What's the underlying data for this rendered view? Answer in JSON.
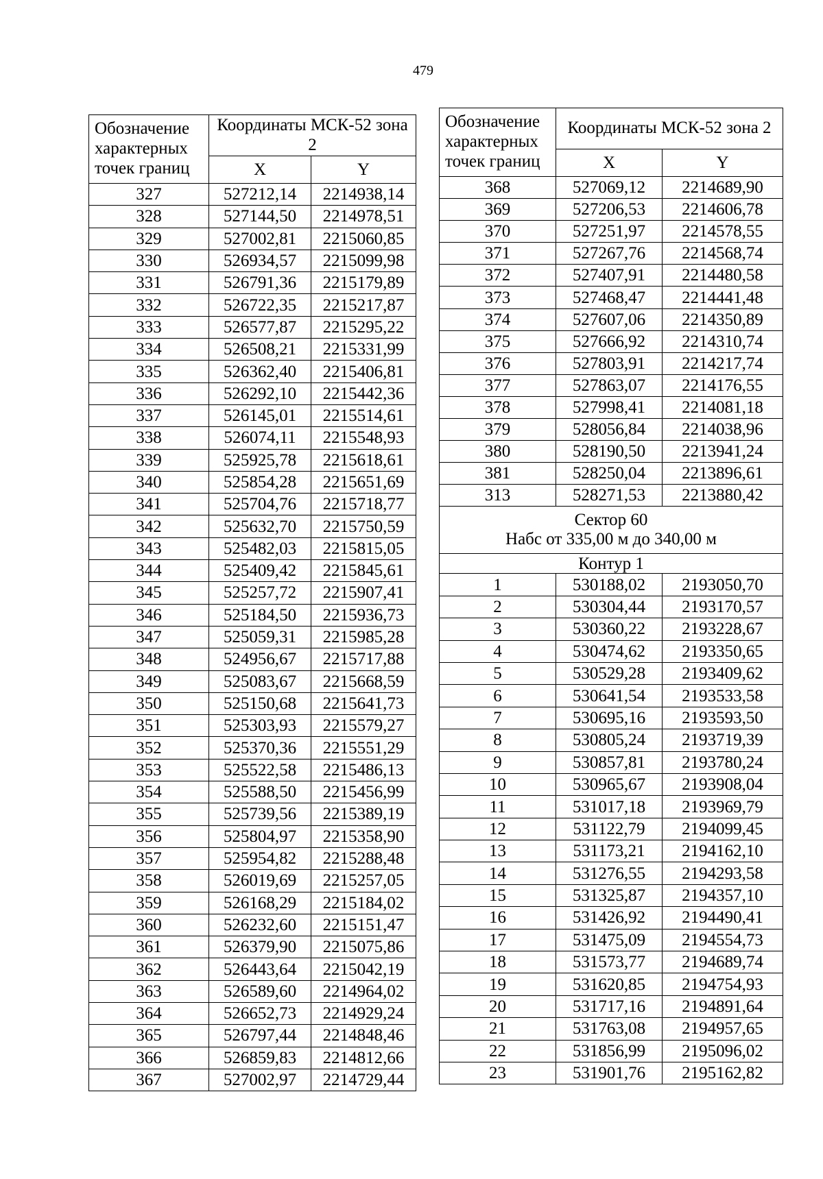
{
  "page_number": "479",
  "left_table": {
    "header": {
      "designation": "Обозначение характерных точек границ",
      "coordinates": "Координаты МСК-52 зона 2",
      "x": "X",
      "y": "Y"
    },
    "rows": [
      [
        "327",
        "527212,14",
        "2214938,14"
      ],
      [
        "328",
        "527144,50",
        "2214978,51"
      ],
      [
        "329",
        "527002,81",
        "2215060,85"
      ],
      [
        "330",
        "526934,57",
        "2215099,98"
      ],
      [
        "331",
        "526791,36",
        "2215179,89"
      ],
      [
        "332",
        "526722,35",
        "2215217,87"
      ],
      [
        "333",
        "526577,87",
        "2215295,22"
      ],
      [
        "334",
        "526508,21",
        "2215331,99"
      ],
      [
        "335",
        "526362,40",
        "2215406,81"
      ],
      [
        "336",
        "526292,10",
        "2215442,36"
      ],
      [
        "337",
        "526145,01",
        "2215514,61"
      ],
      [
        "338",
        "526074,11",
        "2215548,93"
      ],
      [
        "339",
        "525925,78",
        "2215618,61"
      ],
      [
        "340",
        "525854,28",
        "2215651,69"
      ],
      [
        "341",
        "525704,76",
        "2215718,77"
      ],
      [
        "342",
        "525632,70",
        "2215750,59"
      ],
      [
        "343",
        "525482,03",
        "2215815,05"
      ],
      [
        "344",
        "525409,42",
        "2215845,61"
      ],
      [
        "345",
        "525257,72",
        "2215907,41"
      ],
      [
        "346",
        "525184,50",
        "2215936,73"
      ],
      [
        "347",
        "525059,31",
        "2215985,28"
      ],
      [
        "348",
        "524956,67",
        "2215717,88"
      ],
      [
        "349",
        "525083,67",
        "2215668,59"
      ],
      [
        "350",
        "525150,68",
        "2215641,73"
      ],
      [
        "351",
        "525303,93",
        "2215579,27"
      ],
      [
        "352",
        "525370,36",
        "2215551,29"
      ],
      [
        "353",
        "525522,58",
        "2215486,13"
      ],
      [
        "354",
        "525588,50",
        "2215456,99"
      ],
      [
        "355",
        "525739,56",
        "2215389,19"
      ],
      [
        "356",
        "525804,97",
        "2215358,90"
      ],
      [
        "357",
        "525954,82",
        "2215288,48"
      ],
      [
        "358",
        "526019,69",
        "2215257,05"
      ],
      [
        "359",
        "526168,29",
        "2215184,02"
      ],
      [
        "360",
        "526232,60",
        "2215151,47"
      ],
      [
        "361",
        "526379,90",
        "2215075,86"
      ],
      [
        "362",
        "526443,64",
        "2215042,19"
      ],
      [
        "363",
        "526589,60",
        "2214964,02"
      ],
      [
        "364",
        "526652,73",
        "2214929,24"
      ],
      [
        "365",
        "526797,44",
        "2214848,46"
      ],
      [
        "366",
        "526859,83",
        "2214812,66"
      ],
      [
        "367",
        "527002,97",
        "2214729,44"
      ]
    ]
  },
  "right_table": {
    "header": {
      "designation": "Обозначение характерных точек границ",
      "coordinates": "Координаты МСК-52 зона 2",
      "x": "X",
      "y": "Y"
    },
    "rows": [
      [
        "368",
        "527069,12",
        "2214689,90"
      ],
      [
        "369",
        "527206,53",
        "2214606,78"
      ],
      [
        "370",
        "527251,97",
        "2214578,55"
      ],
      [
        "371",
        "527267,76",
        "2214568,74"
      ],
      [
        "372",
        "527407,91",
        "2214480,58"
      ],
      [
        "373",
        "527468,47",
        "2214441,48"
      ],
      [
        "374",
        "527607,06",
        "2214350,89"
      ],
      [
        "375",
        "527666,92",
        "2214310,74"
      ],
      [
        "376",
        "527803,91",
        "2214217,74"
      ],
      [
        "377",
        "527863,07",
        "2214176,55"
      ],
      [
        "378",
        "527998,41",
        "2214081,18"
      ],
      [
        "379",
        "528056,84",
        "2214038,96"
      ],
      [
        "380",
        "528190,50",
        "2213941,24"
      ],
      [
        "381",
        "528250,04",
        "2213896,61"
      ],
      [
        "313",
        "528271,53",
        "2213880,42"
      ]
    ],
    "section": {
      "title": "Сектор 60",
      "height_range": "Набс от 335,00 м до 340,00 м",
      "contour": "Контур 1",
      "rows": [
        [
          "1",
          "530188,02",
          "2193050,70"
        ],
        [
          "2",
          "530304,44",
          "2193170,57"
        ],
        [
          "3",
          "530360,22",
          "2193228,67"
        ],
        [
          "4",
          "530474,62",
          "2193350,65"
        ],
        [
          "5",
          "530529,28",
          "2193409,62"
        ],
        [
          "6",
          "530641,54",
          "2193533,58"
        ],
        [
          "7",
          "530695,16",
          "2193593,50"
        ],
        [
          "8",
          "530805,24",
          "2193719,39"
        ],
        [
          "9",
          "530857,81",
          "2193780,24"
        ],
        [
          "10",
          "530965,67",
          "2193908,04"
        ],
        [
          "11",
          "531017,18",
          "2193969,79"
        ],
        [
          "12",
          "531122,79",
          "2194099,45"
        ],
        [
          "13",
          "531173,21",
          "2194162,10"
        ],
        [
          "14",
          "531276,55",
          "2194293,58"
        ],
        [
          "15",
          "531325,87",
          "2194357,10"
        ],
        [
          "16",
          "531426,92",
          "2194490,41"
        ],
        [
          "17",
          "531475,09",
          "2194554,73"
        ],
        [
          "18",
          "531573,77",
          "2194689,74"
        ],
        [
          "19",
          "531620,85",
          "2194754,93"
        ],
        [
          "20",
          "531717,16",
          "2194891,64"
        ],
        [
          "21",
          "531763,08",
          "2194957,65"
        ],
        [
          "22",
          "531856,99",
          "2195096,02"
        ],
        [
          "23",
          "531901,76",
          "2195162,82"
        ]
      ]
    }
  }
}
